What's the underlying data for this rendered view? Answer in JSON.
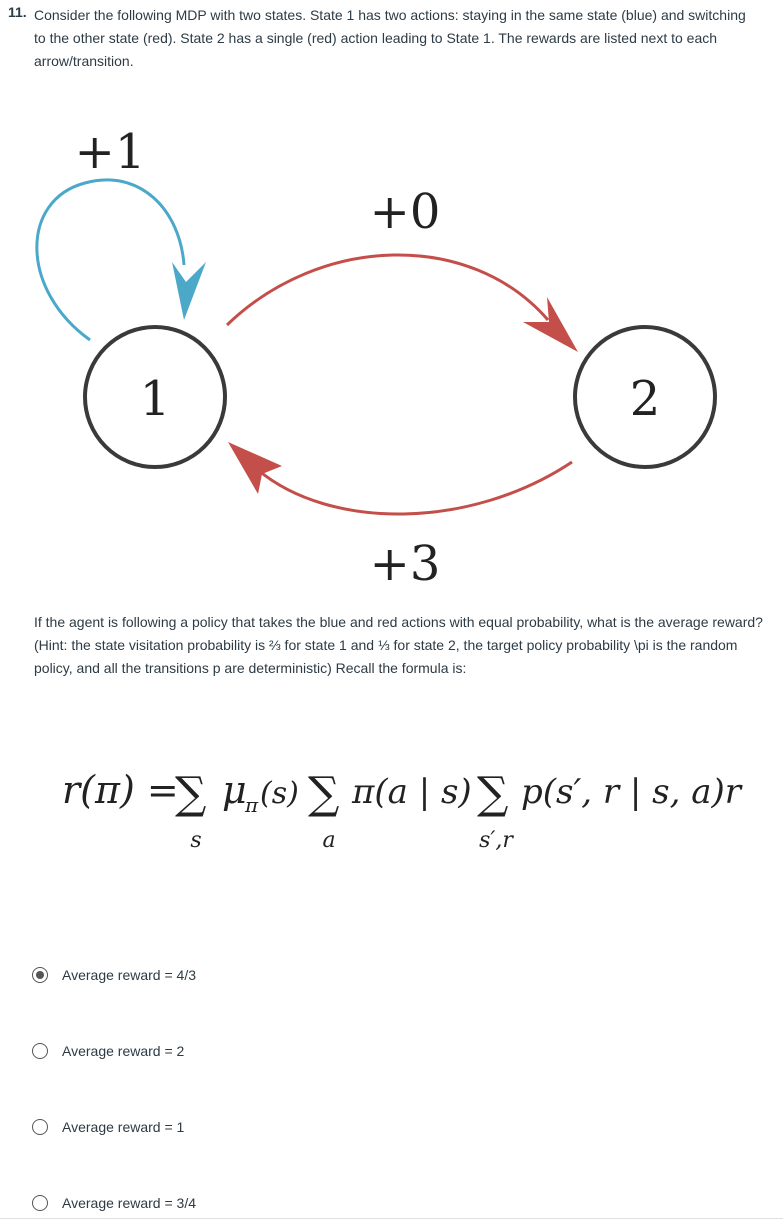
{
  "question": {
    "number": "11.",
    "text": "Consider the following MDP with two states. State 1 has two actions: staying in the same state (blue) and switching to the other state (red). State 2 has a single (red) action leading to State 1. The rewards are listed next to each arrow/transition."
  },
  "diagram": {
    "state1_label": "1",
    "state2_label": "2",
    "reward_self_loop": "+1",
    "reward_1_to_2": "+0",
    "reward_2_to_1": "+3",
    "colors": {
      "blue": "#4ba8c8",
      "red": "#c44e4a",
      "node": "#3a3a3a"
    }
  },
  "hint": "If the agent is following a policy that takes the blue and red actions with equal probability, what is the average reward? (Hint: the state visitation probability is ⅔ for state 1 and ⅓ for state 2, the target policy  probability \\pi is the random policy, and all the transitions p are deterministic) Recall the formula is:",
  "formula": {
    "lhs": "r(π) =",
    "term1": "μ",
    "term1_sub": "π",
    "term1_arg": "(s)",
    "term2": "π(a | s)",
    "term3": "p(s′, r | s, a)r",
    "sum1_index": "s",
    "sum2_index": "a",
    "sum3_index": "s′,r"
  },
  "options": [
    {
      "label": "Average reward = 4/3",
      "selected": true
    },
    {
      "label": "Average reward = 2",
      "selected": false
    },
    {
      "label": "Average reward = 1",
      "selected": false
    },
    {
      "label": "Average reward = 3/4",
      "selected": false
    }
  ]
}
